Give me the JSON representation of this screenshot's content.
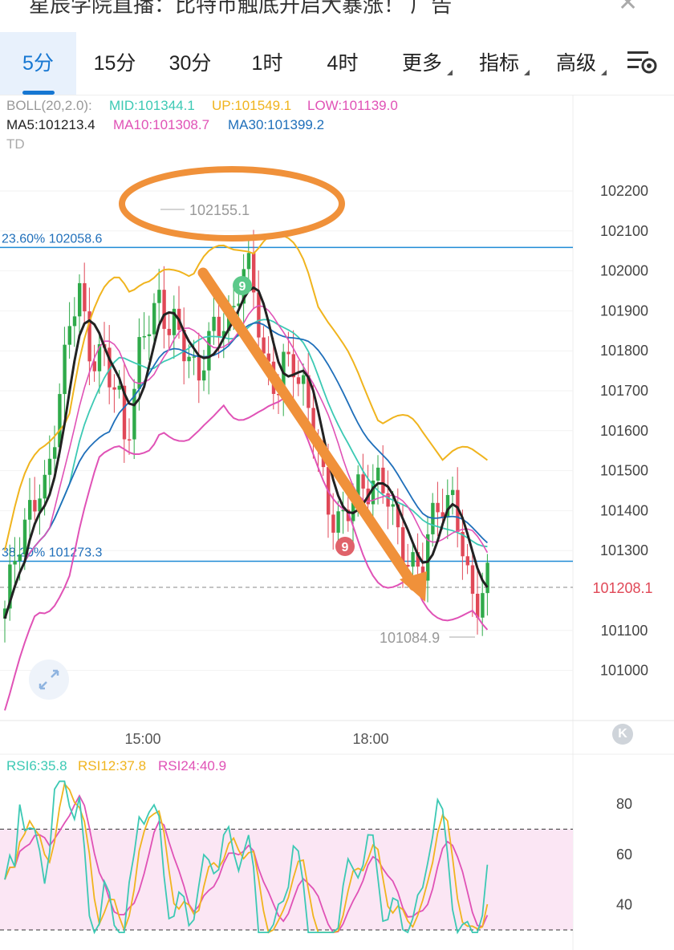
{
  "header": {
    "title": "星辰学院直播：比特币触底开启大暴涨！ 广告",
    "close_icon": "close-icon"
  },
  "tabs": [
    {
      "label": "5分",
      "active": true
    },
    {
      "label": "15分"
    },
    {
      "label": "30分"
    },
    {
      "label": "1时"
    },
    {
      "label": "4时"
    },
    {
      "label": "更多",
      "dropdown": true
    },
    {
      "label": "指标",
      "dropdown": true
    },
    {
      "label": "高级",
      "dropdown": true
    }
  ],
  "settings_icon": "chart-settings-icon",
  "indicators": {
    "boll_name": "BOLL(20,2.0):",
    "boll_mid": "MID:101344.1",
    "boll_up": "UP:101549.1",
    "boll_low": "LOW:101139.0",
    "ma5": "MA5:101213.4",
    "ma10": "MA10:101308.7",
    "ma30": "MA30:101399.2",
    "td": "TD"
  },
  "price_axis": [
    "102200",
    "102100",
    "102000",
    "101900",
    "101800",
    "101700",
    "101600",
    "101500",
    "101400",
    "101300",
    "101100",
    "101000"
  ],
  "fib_lines": [
    {
      "label": "23.60% 102058.6",
      "value": 102058.6
    },
    {
      "label": "38.20% 101273.3",
      "value": 101273.3
    }
  ],
  "current_price": "101208.1",
  "high_label": "102155.1",
  "low_label": "101084.9",
  "td_markers": [
    "9",
    "9"
  ],
  "time_axis": [
    "15:00",
    "18:00"
  ],
  "rsi": {
    "rsi6": "RSI6:35.8",
    "rsi12": "RSI12:37.8",
    "rsi24": "RSI24:40.9",
    "axis": [
      "80",
      "60",
      "40"
    ]
  },
  "colors": {
    "accent": "#1677d2",
    "up": "#2faa4a",
    "down": "#e04857",
    "boll_up": "#f0b41e",
    "boll_mid": "#3cc9b4",
    "boll_low": "#e052b6",
    "ma5": "#222222",
    "ma10": "#e052b6",
    "ma30": "#1f6fba",
    "annotation": "#f0913a",
    "rsi_band": "#fbe6f4"
  }
}
